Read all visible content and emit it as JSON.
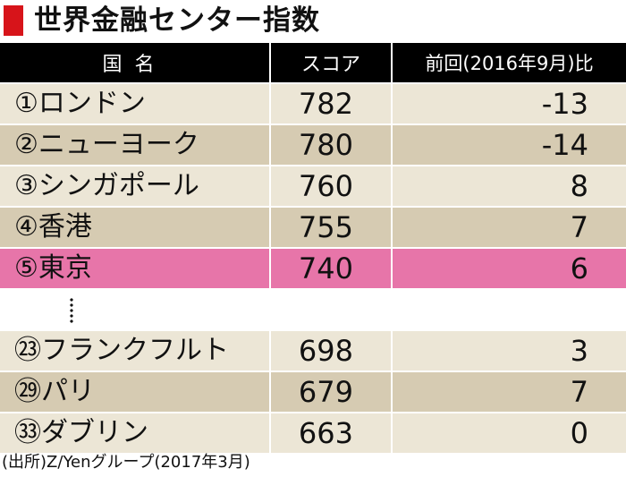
{
  "title": "世界金融センター指数",
  "header": {
    "col1": "国名",
    "col2": "スコア",
    "col3": "前回(2016年9月)比"
  },
  "rows_top": [
    {
      "name": "①ロンドン",
      "score": "782",
      "change": "-13"
    },
    {
      "name": "②ニューヨーク",
      "score": "780",
      "change": "-14"
    },
    {
      "name": "③シンガポール",
      "score": "760",
      "change": "8"
    },
    {
      "name": "④香港",
      "score": "755",
      "change": "7"
    },
    {
      "name": "⑤東京",
      "score": "740",
      "change": "6"
    }
  ],
  "rows_bottom": [
    {
      "name": "㉓フランクフルト",
      "score": "698",
      "change": "3"
    },
    {
      "name": "㉙パリ",
      "score": "679",
      "change": "7"
    },
    {
      "name": "㉝ダブリン",
      "score": "663",
      "change": "0"
    }
  ],
  "colors": {
    "accent": "#d7141a",
    "highlight": "#e775a9",
    "row_light": "#ece6d6",
    "row_dark": "#d6cbb2"
  },
  "source": "(出所)Z/Yenグループ(2017年3月)"
}
